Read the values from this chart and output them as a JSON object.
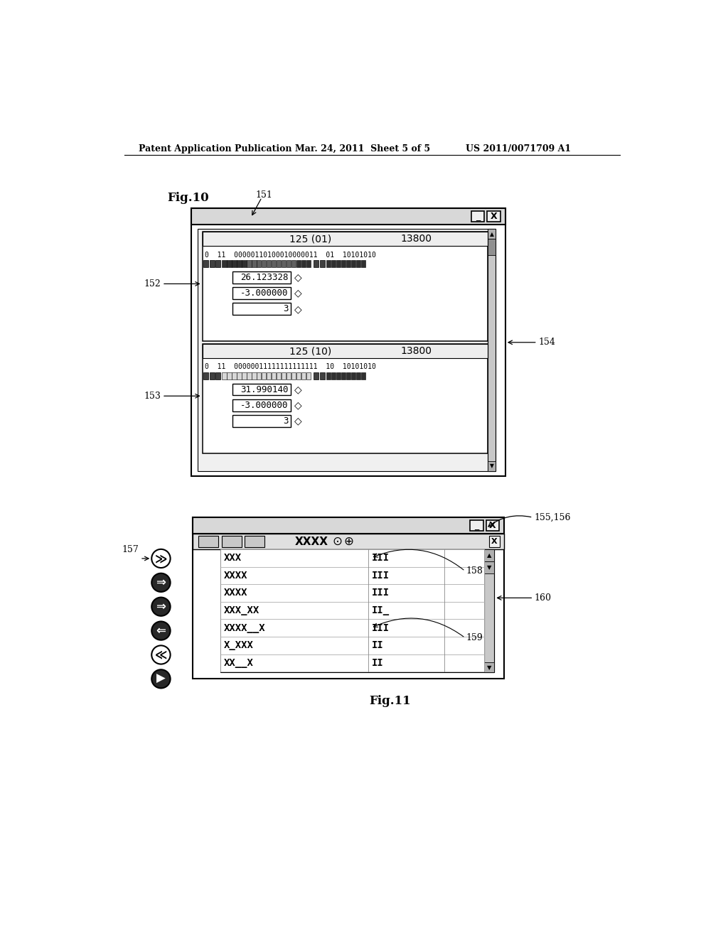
{
  "bg_color": "#ffffff",
  "header_left": "Patent Application Publication",
  "header_mid": "Mar. 24, 2011  Sheet 5 of 5",
  "header_right": "US 2011/0071709 A1",
  "fig10_label": "Fig.10",
  "fig11_label": "Fig.11",
  "fig10_ref": "151",
  "fig10_panel1_header": "125 (01)        13800",
  "fig10_panel1_bits": "0  11  00000110100010000011  01  10101010",
  "fig10_panel1_val1": "26.123328",
  "fig10_panel1_val2": "-3.000000",
  "fig10_panel1_val3": "3",
  "fig10_panel2_header": "125 (10)        13800",
  "fig10_panel2_bits": "0  11  00000011111111111111  10  10101010",
  "fig10_panel2_val1": "31.990140",
  "fig10_panel2_val2": "-3.000000",
  "fig10_panel2_val3": "3",
  "ref_152": "152",
  "ref_153": "153",
  "ref_154": "154",
  "ref_155_156": "155,156",
  "ref_157": "157",
  "ref_158": "158",
  "ref_159": "159",
  "ref_160": "160",
  "fig11_toolbar_text": "XXXX",
  "fig11_rows": [
    [
      "XXX",
      "III"
    ],
    [
      "XXXX",
      "III"
    ],
    [
      "XXXX",
      "III"
    ],
    [
      "XXX_XX",
      "II_"
    ],
    [
      "XXXX__X",
      "III"
    ],
    [
      "X_XXX",
      "II"
    ],
    [
      "XX__X",
      "II"
    ]
  ]
}
